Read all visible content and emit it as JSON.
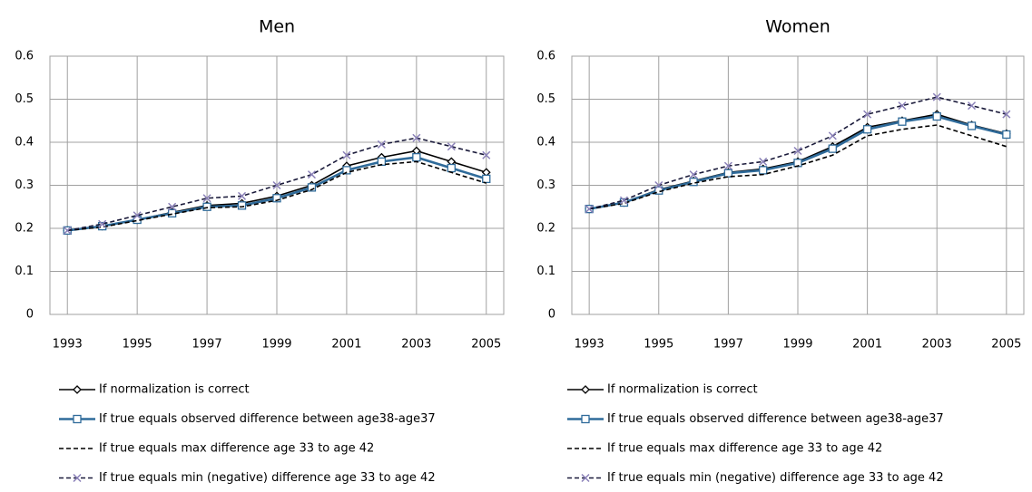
{
  "chart_data": [
    {
      "type": "line",
      "title": "Men",
      "x": [
        1993,
        1994,
        1995,
        1996,
        1997,
        1998,
        1999,
        2000,
        2001,
        2002,
        2003,
        2004,
        2005
      ],
      "xlim": [
        1992.5,
        2005.5
      ],
      "xticks": [
        1993,
        1995,
        1997,
        1999,
        2001,
        2003,
        2005
      ],
      "ylim": [
        0,
        0.6
      ],
      "yticks": [
        0,
        0.1,
        0.2,
        0.3,
        0.4,
        0.5,
        0.6
      ],
      "grid": true,
      "series": [
        {
          "name": "If normalization is correct",
          "color": "#000000",
          "marker": "diamond",
          "dash": false,
          "values": [
            0.195,
            0.205,
            0.22,
            0.237,
            0.253,
            0.258,
            0.275,
            0.3,
            0.345,
            0.365,
            0.38,
            0.355,
            0.33
          ]
        },
        {
          "name": "If true equals observed difference between  age38-age37",
          "color": "#2f6b9a",
          "marker": "square",
          "dash": false,
          "values": [
            0.195,
            0.205,
            0.22,
            0.235,
            0.25,
            0.253,
            0.27,
            0.295,
            0.335,
            0.355,
            0.365,
            0.34,
            0.315
          ]
        },
        {
          "name": "If true equals max difference age 33 to age 42",
          "color": "#000000",
          "marker": "none",
          "dash": true,
          "values": [
            0.195,
            0.203,
            0.218,
            0.233,
            0.248,
            0.25,
            0.265,
            0.29,
            0.33,
            0.348,
            0.355,
            0.33,
            0.305
          ]
        },
        {
          "name": "If true equals min (negative) difference age 33 to age 42",
          "color": "#1a1a3a",
          "marker": "x",
          "dash": true,
          "values": [
            0.195,
            0.21,
            0.23,
            0.25,
            0.27,
            0.275,
            0.3,
            0.325,
            0.37,
            0.395,
            0.41,
            0.39,
            0.37
          ]
        }
      ]
    },
    {
      "type": "line",
      "title": "Women",
      "x": [
        1993,
        1994,
        1995,
        1996,
        1997,
        1998,
        1999,
        2000,
        2001,
        2002,
        2003,
        2004,
        2005
      ],
      "xlim": [
        1992.5,
        2005.5
      ],
      "xticks": [
        1993,
        1995,
        1997,
        1999,
        2001,
        2003,
        2005
      ],
      "ylim": [
        0,
        0.6
      ],
      "yticks": [
        0,
        0.1,
        0.2,
        0.3,
        0.4,
        0.5,
        0.6
      ],
      "grid": true,
      "series": [
        {
          "name": "If normalization is correct",
          "color": "#000000",
          "marker": "diamond",
          "dash": false,
          "values": [
            0.245,
            0.26,
            0.29,
            0.31,
            0.33,
            0.338,
            0.355,
            0.39,
            0.435,
            0.45,
            0.465,
            0.44,
            0.42
          ]
        },
        {
          "name": "If true equals observed difference between  age38-age37",
          "color": "#2f6b9a",
          "marker": "square",
          "dash": false,
          "values": [
            0.245,
            0.26,
            0.288,
            0.308,
            0.328,
            0.335,
            0.352,
            0.385,
            0.43,
            0.448,
            0.46,
            0.438,
            0.418
          ]
        },
        {
          "name": "If true equals max difference age 33 to age 42",
          "color": "#000000",
          "marker": "none",
          "dash": true,
          "values": [
            0.245,
            0.258,
            0.285,
            0.305,
            0.32,
            0.325,
            0.345,
            0.37,
            0.415,
            0.43,
            0.44,
            0.415,
            0.39
          ]
        },
        {
          "name": "If true equals min (negative) difference age 33 to age 42",
          "color": "#1a1a3a",
          "marker": "x",
          "dash": true,
          "values": [
            0.245,
            0.265,
            0.3,
            0.325,
            0.345,
            0.355,
            0.38,
            0.415,
            0.465,
            0.485,
            0.505,
            0.485,
            0.465
          ]
        }
      ]
    }
  ]
}
